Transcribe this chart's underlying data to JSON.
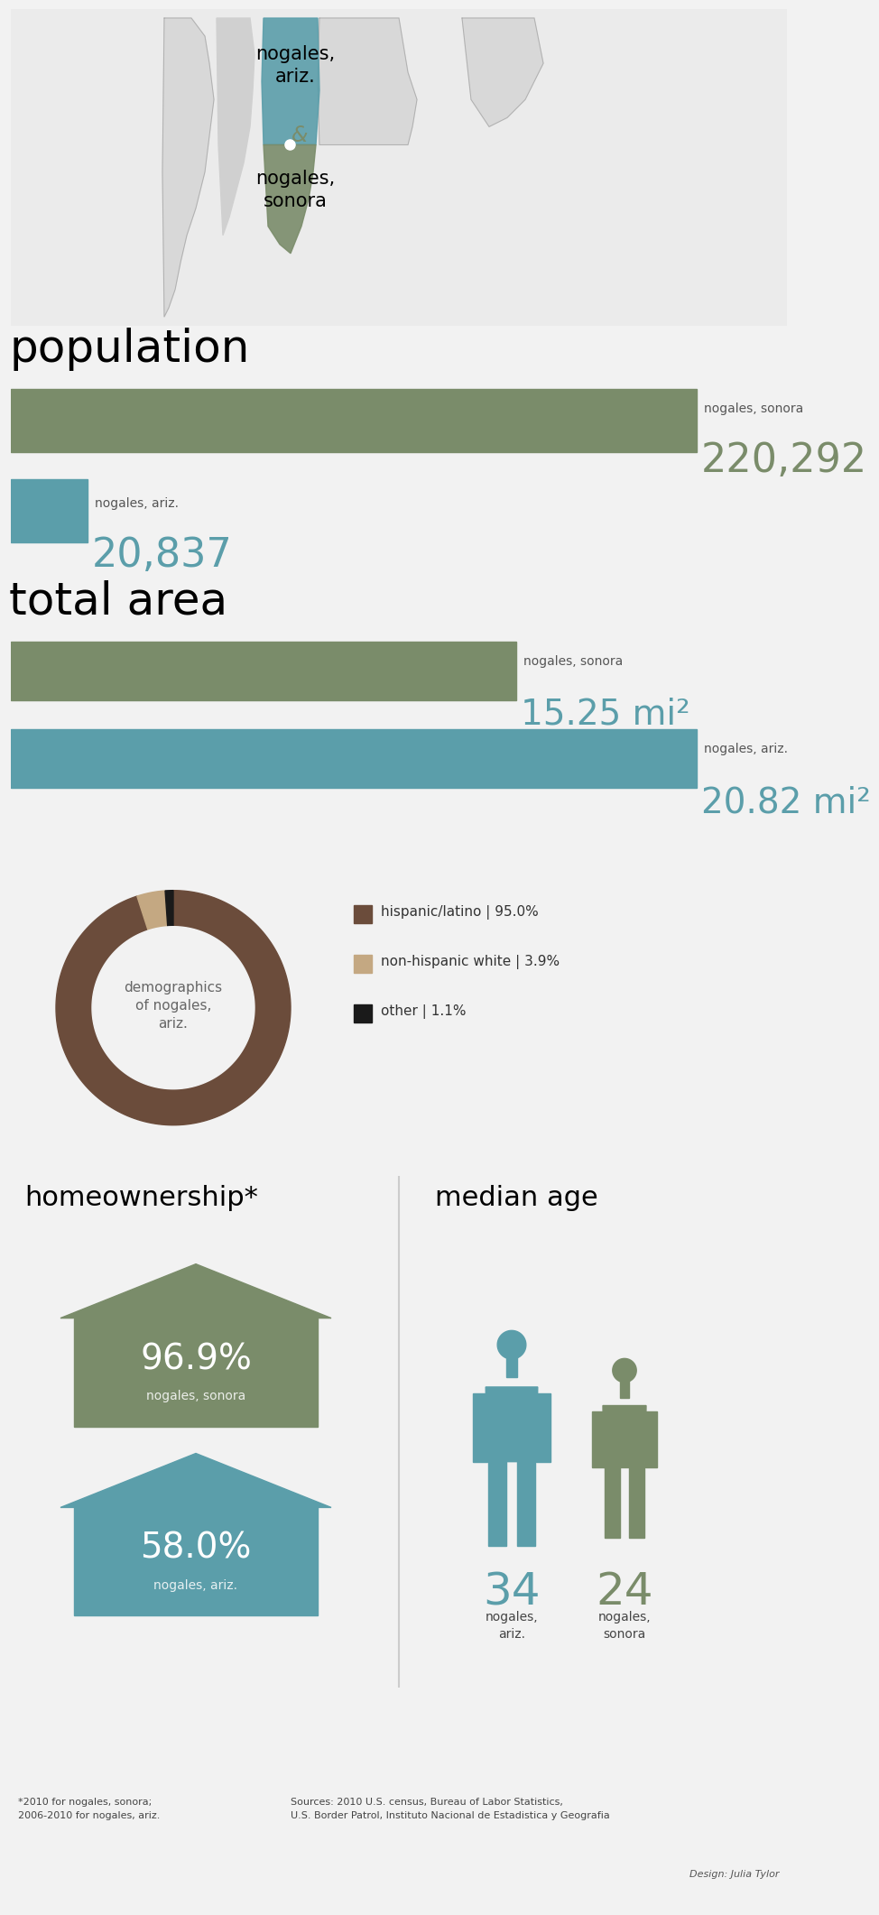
{
  "bg_color": "#f2f2f2",
  "white": "#ffffff",
  "teal_color": "#5b9eaa",
  "olive_color": "#7a8c6a",
  "brown_color": "#6b4c3b",
  "tan_color": "#c4a882",
  "map_az_color": "#5b9eaa",
  "map_son_color": "#7a8c6a",
  "map_bg": "#e0e0e0",
  "map_outline": "#aaaaaa",
  "pop_sonora_label": "220,292",
  "pop_ariz_label": "20,837",
  "area_sonora_label": "15.25 mi²",
  "area_ariz_label": "20.82 mi²",
  "demo_hispanic": 95.0,
  "demo_nonhispanic": 3.9,
  "demo_other": 1.1,
  "homeown_sonora": 96.9,
  "homeown_ariz": 58.0,
  "median_age_ariz": 34,
  "median_age_sonora": 24,
  "footnote": "*2010 for nogales, sonora;\n2006-2010 for nogales, ariz.",
  "sources": "Sources: 2010 U.S. census, Bureau of Labor Statistics,\nU.S. Border Patrol, Instituto Nacional de Estadistica y Geografia",
  "designer": "Design: Julia Tylor"
}
